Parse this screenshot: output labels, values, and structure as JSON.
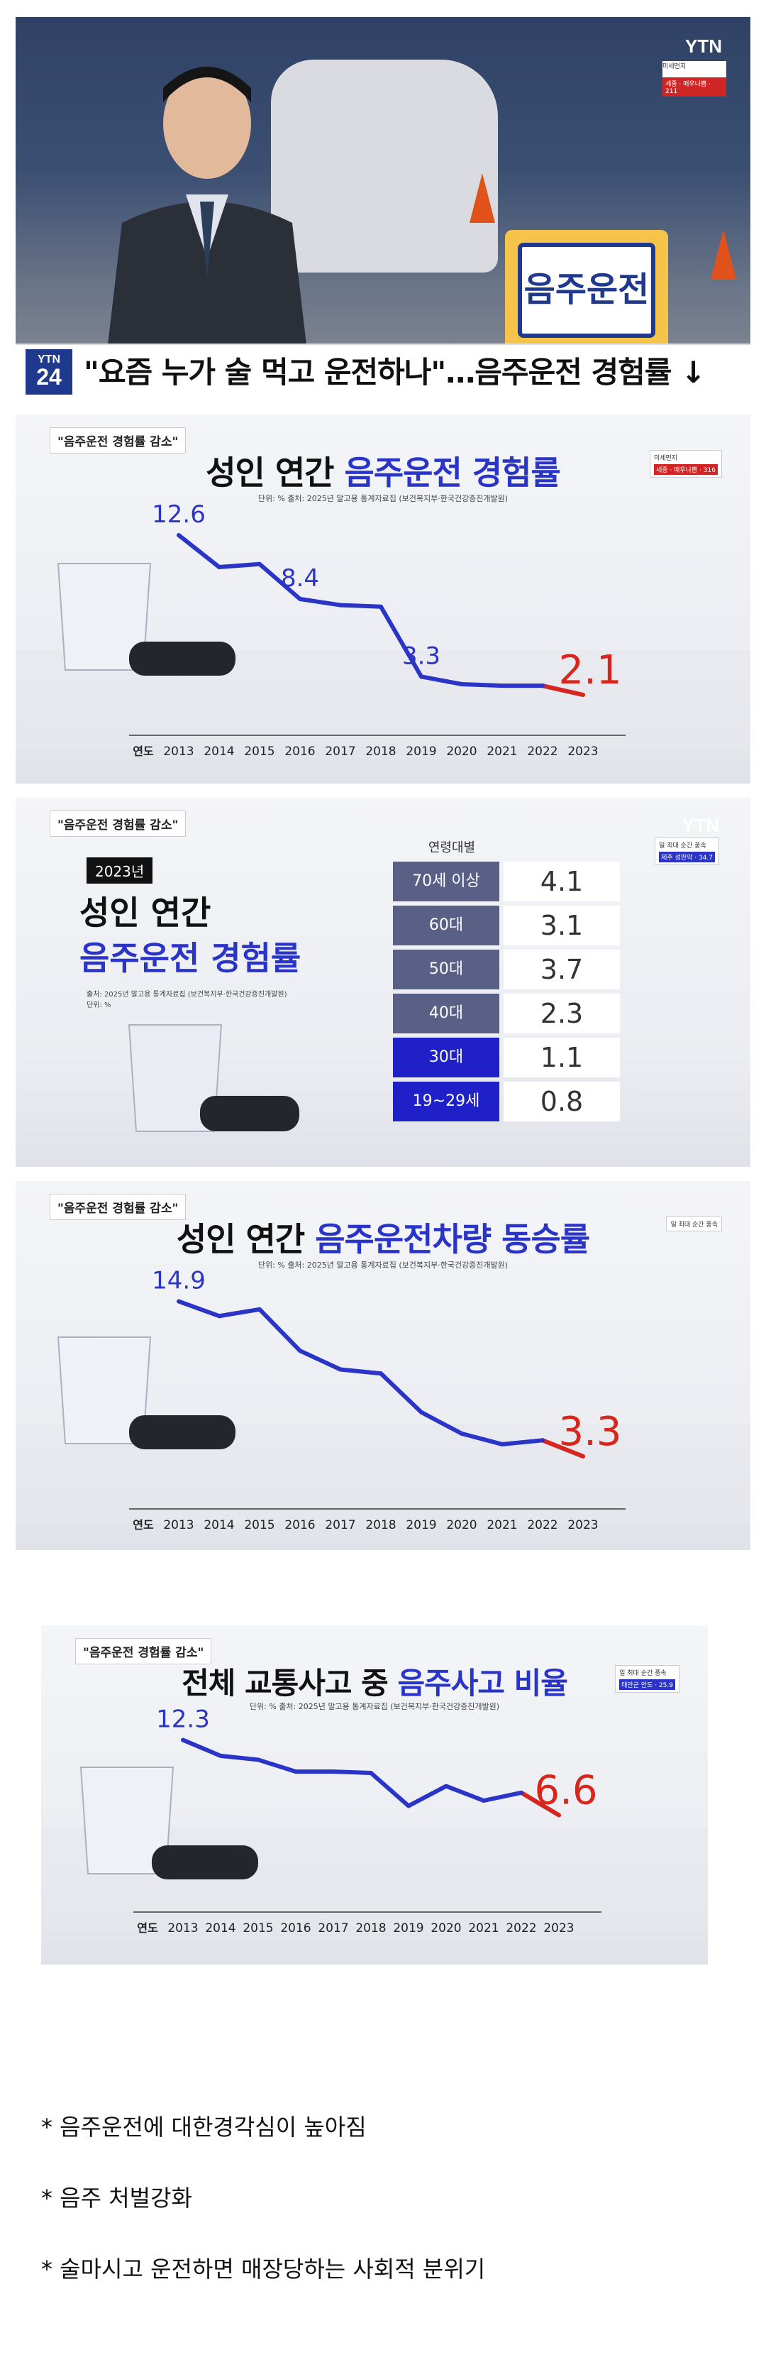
{
  "broadcast": {
    "logo": "YTN",
    "badge_top": "미세먼지",
    "badge_red": "세종 · 매우나쁨 · 211",
    "sign_text": "음주운전",
    "channel_top": "YTN",
    "channel_num": "24",
    "headline": "\"요즘 누가 술 먹고 운전하나\"…음주운전 경험률 ↓"
  },
  "charts": [
    {
      "tag": "\"음주운전 경험률 감소\"",
      "title_plain": "성인 연간 ",
      "title_highlight": "음주운전 경험률",
      "source": "단위: %     출처: 2025년 말고용 통계자료집 (보건복지부·한국건강증진개발원)",
      "mini_top": "미세먼지",
      "mini_label": "세종 · 매우나쁨 · 316"
    },
    {
      "tag": "\"음주운전 경험률 감소\"",
      "title_plain": "성인 연간 ",
      "title_highlight": "음주운전차량 동승률",
      "source": "단위: %     출처: 2025년 말고용 통계자료집 (보건복지부·한국건강증진개발원)",
      "mini_top": "일 최대 순간 풍속"
    },
    {
      "tag": "\"음주운전 경험률 감소\"",
      "title_plain": "전체 교통사고 중 ",
      "title_highlight": "음주사고 비율",
      "source": "단위: %     출처: 2025년 말고용 통계자료집 (보건복지부·한국건강증진개발원)",
      "mini_top": "일 최대 순간 풍속",
      "mini_label": "태안군 안도 · 25.9"
    }
  ],
  "age_panel": {
    "tag": "\"음주운전 경험률 감소\"",
    "year": "2023년",
    "title_line1": "성인 연간",
    "title_line2": "음주운전 경험률",
    "source": "출처: 2025년 말고용 통계자료집 (보건복지부·한국건강증진개발원)",
    "unit": "단위: %",
    "header": "연령대별",
    "logo": "YTN",
    "mini_top": "일 최대 순간 풍속",
    "mini_label": "제주 성판악 · 34.7"
  },
  "chart_data": [
    {
      "type": "line",
      "title": "성인 연간 음주운전 경험률",
      "x": [
        "2013",
        "2014",
        "2015",
        "2016",
        "2017",
        "2018",
        "2019",
        "2020",
        "2021",
        "2022",
        "2023"
      ],
      "values": [
        12.6,
        10.5,
        10.7,
        8.4,
        8.0,
        7.9,
        3.3,
        2.8,
        2.7,
        2.7,
        2.1
      ],
      "labels": {
        "0": "12.6",
        "3": "8.4",
        "6": "3.3",
        "10": "2.1"
      },
      "xlabel": "연도",
      "ylim": [
        0,
        14
      ]
    },
    {
      "type": "bar",
      "title": "성인 연간 음주운전 경험률 (2023년 연령대별)",
      "categories": [
        "70세 이상",
        "60대",
        "50대",
        "40대",
        "30대",
        "19~29세"
      ],
      "values": [
        4.1,
        3.1,
        3.7,
        2.3,
        1.1,
        0.8
      ]
    },
    {
      "type": "line",
      "title": "성인 연간 음주운전차량 동승률",
      "x": [
        "2013",
        "2014",
        "2015",
        "2016",
        "2017",
        "2018",
        "2019",
        "2020",
        "2021",
        "2022",
        "2023"
      ],
      "values": [
        14.9,
        13.8,
        14.3,
        11.2,
        9.8,
        9.5,
        6.6,
        5.0,
        4.2,
        4.5,
        3.3
      ],
      "labels": {
        "0": "14.9",
        "10": "3.3"
      },
      "xlabel": "연도",
      "ylim": [
        0,
        17
      ]
    },
    {
      "type": "line",
      "title": "전체 교통사고 중 음주사고 비율",
      "x": [
        "2013",
        "2014",
        "2015",
        "2016",
        "2017",
        "2018",
        "2019",
        "2020",
        "2021",
        "2022",
        "2023"
      ],
      "values": [
        12.3,
        11.1,
        10.8,
        9.9,
        9.9,
        9.8,
        7.3,
        8.8,
        7.7,
        8.3,
        6.6
      ],
      "labels": {
        "0": "12.3",
        "10": "6.6"
      },
      "xlabel": "연도",
      "ylim": [
        0,
        14
      ]
    }
  ],
  "notes": [
    "* 음주운전에 대한경각심이 높아짐",
    "* 음주 처벌강화",
    "* 술마시고 운전하면 매장당하는 사회적 분위기"
  ],
  "colors": {
    "line": "#2a35c8",
    "highlight": "#d9261c",
    "dark_box": "#5a5f86",
    "blue_box": "#2020c8"
  }
}
